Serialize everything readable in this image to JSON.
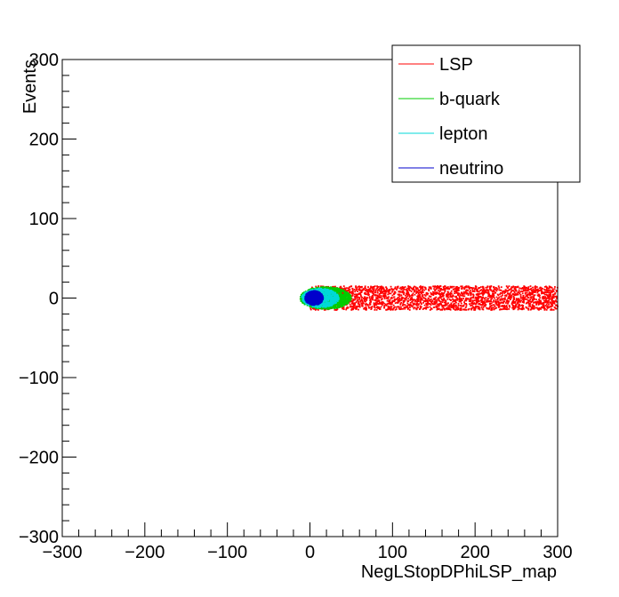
{
  "chart_data": {
    "type": "scatter",
    "title": "",
    "xlabel": "NegLStopDPhiLSP_map",
    "ylabel": "Events",
    "xlim": [
      -300,
      300
    ],
    "ylim": [
      -300,
      300
    ],
    "x_ticks": [
      -300,
      -200,
      -100,
      0,
      100,
      200,
      300
    ],
    "y_ticks": [
      -300,
      -200,
      -100,
      0,
      100,
      200,
      300
    ],
    "x_tick_labels": [
      "−300",
      "−200",
      "−100",
      "0",
      "100",
      "200",
      "300"
    ],
    "y_tick_labels": [
      "−300",
      "−200",
      "−100",
      "0",
      "100",
      "200",
      "300"
    ],
    "grid": false,
    "legend_position": "top-right",
    "series": [
      {
        "name": "LSP",
        "color": "#ff0000",
        "x_range": [
          0,
          300
        ],
        "y_range": [
          -15,
          15
        ]
      },
      {
        "name": "b-quark",
        "color": "#00cc00",
        "x_range": [
          -12,
          50
        ],
        "y_range": [
          -14,
          14
        ]
      },
      {
        "name": "lepton",
        "color": "#00d8d8",
        "x_range": [
          -10,
          35
        ],
        "y_range": [
          -12,
          12
        ]
      },
      {
        "name": "neutrino",
        "color": "#0000cc",
        "x_range": [
          -6,
          16
        ],
        "y_range": [
          -9,
          9
        ]
      }
    ]
  }
}
